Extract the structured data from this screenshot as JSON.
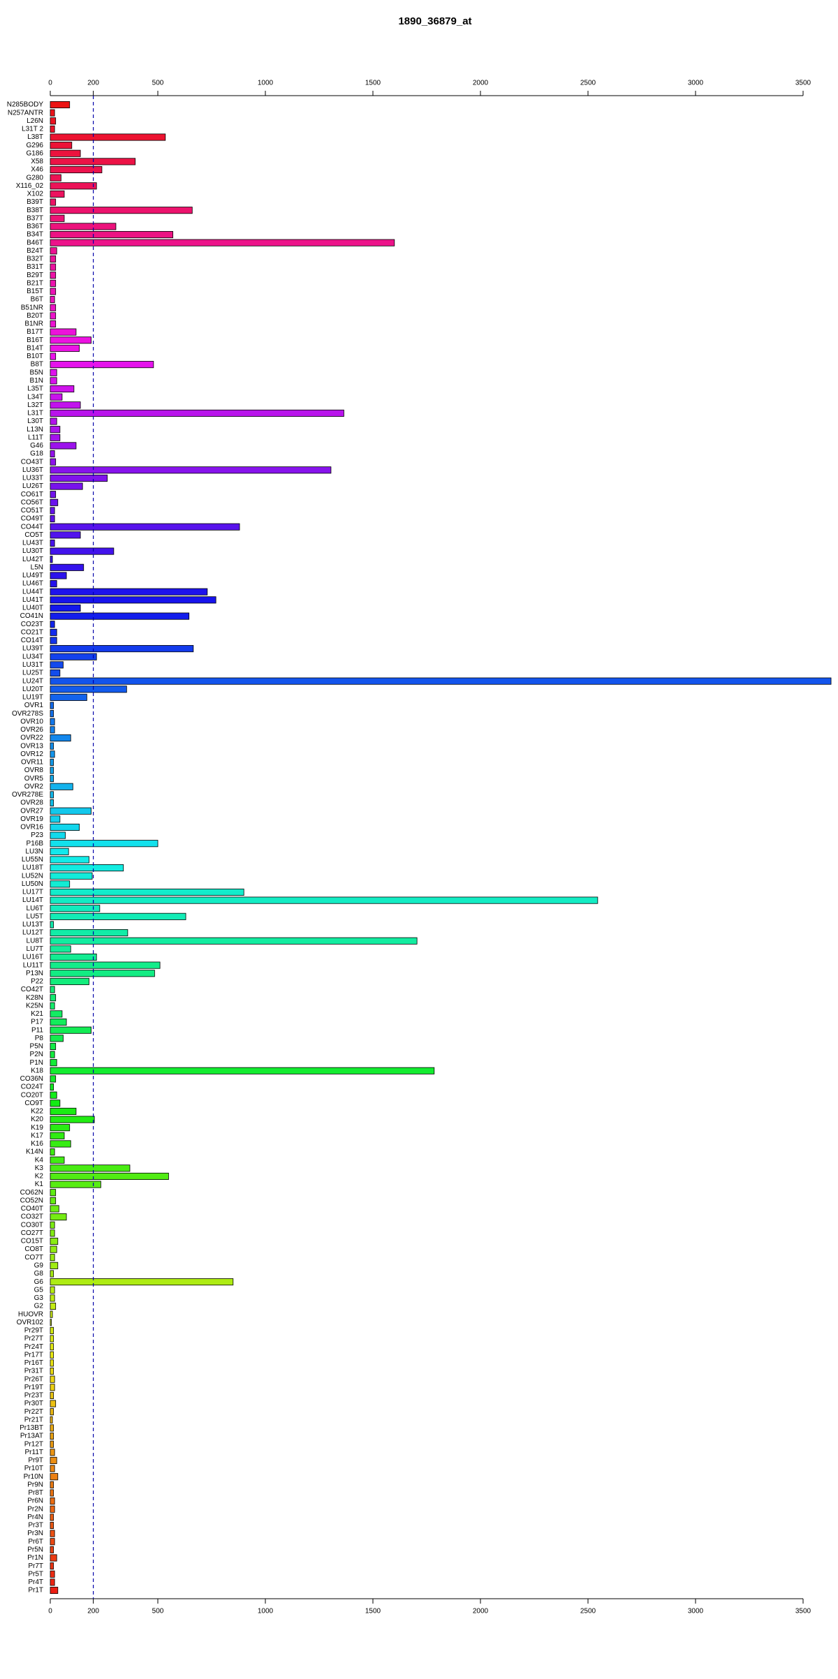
{
  "chart_data": {
    "type": "bar",
    "orientation": "horizontal",
    "title": "1890_36879_at",
    "categories": [
      "N285BODY",
      "N257ANTR",
      "L26N",
      "L31T 2",
      "L38T",
      "G296",
      "G186",
      "X58",
      "X46",
      "G280",
      "X116_02",
      "X102",
      "B39T",
      "B38T",
      "B37T",
      "B36T",
      "B34T",
      "B46T",
      "B24T",
      "B32T",
      "B31T",
      "B29T",
      "B21T",
      "B15T",
      "B6T",
      "B51NR",
      "B20T",
      "B1NR",
      "B17T",
      "B16T",
      "B14T",
      "B10T",
      "B8T",
      "B5N",
      "B1N",
      "L35T",
      "L34T",
      "L32T",
      "L31T",
      "L30T",
      "L13N",
      "L11T",
      "G46",
      "G18",
      "CO43T",
      "LU36T",
      "LU33T",
      "LU26T",
      "CO61T",
      "CO56T",
      "CO51T",
      "CO49T",
      "CO44T",
      "CO5T",
      "LU43T",
      "LU30T",
      "LU42T",
      "L5N",
      "LU49T",
      "LU46T",
      "LU44T",
      "LU41T",
      "LU40T",
      "CO41N",
      "CO23T",
      "CO21T",
      "CO14T",
      "LU39T",
      "LU34T",
      "LU31T",
      "LU25T",
      "LU24T",
      "LU20T",
      "LU19T",
      "OVR1",
      "OVR278S",
      "OVR10",
      "OVR26",
      "OVR22",
      "OVR13",
      "OVR12",
      "OVR11",
      "OVR8",
      "OVR5",
      "OVR2",
      "OVR278E",
      "OVR28",
      "OVR27",
      "OVR19",
      "OVR16",
      "P23",
      "P16B",
      "LU3N",
      "LU55N",
      "LU18T",
      "LU52N",
      "LU50N",
      "LU17T",
      "LU14T",
      "LU6T",
      "LU5T",
      "LU13T",
      "LU12T",
      "LU8T",
      "LU7T",
      "LU16T",
      "LU11T",
      "P13N",
      "P22",
      "CO42T",
      "K28N",
      "K25N",
      "K21",
      "P17",
      "P11",
      "P8",
      "P5N",
      "P2N",
      "P1N",
      "K18",
      "CO36N",
      "CO24T",
      "CO20T",
      "CO9T",
      "K22",
      "K20",
      "K19",
      "K17",
      "K16",
      "K14N",
      "K4",
      "K3",
      "K2",
      "K1",
      "CO62N",
      "CO52N",
      "CO40T",
      "CO32T",
      "CO30T",
      "CO27T",
      "CO15T",
      "CO8T",
      "CO7T",
      "G9",
      "G8",
      "G6",
      "G5",
      "G3",
      "G2",
      "HUOVR",
      "OVR102",
      "Pr29T",
      "Pr27T",
      "Pr24T",
      "Pr17T",
      "Pr16T",
      "Pr31T",
      "Pr26T",
      "Pr19T",
      "Pr23T",
      "Pr30T",
      "Pr22T",
      "Pr21T",
      "Pr13BT",
      "Pr13AT",
      "Pr12T",
      "Pr11T",
      "Pr9T",
      "Pr10T",
      "Pr10N",
      "Pr9N",
      "Pr8T",
      "Pr6N",
      "Pr2N",
      "Pr4N",
      "Pr3T",
      "Pr3N",
      "Pr6T",
      "Pr5N",
      "Pr1N",
      "Pr7T",
      "Pr5T",
      "Pr4T",
      "Pr1T"
    ],
    "values": [
      90,
      20,
      25,
      20,
      535,
      100,
      140,
      395,
      240,
      50,
      215,
      65,
      25,
      660,
      65,
      305,
      570,
      1600,
      30,
      25,
      25,
      25,
      25,
      25,
      20,
      25,
      25,
      25,
      120,
      190,
      135,
      25,
      480,
      30,
      30,
      110,
      55,
      140,
      1365,
      30,
      45,
      45,
      120,
      20,
      25,
      1305,
      265,
      150,
      25,
      35,
      20,
      20,
      880,
      140,
      20,
      295,
      10,
      155,
      75,
      30,
      730,
      770,
      140,
      645,
      20,
      30,
      30,
      665,
      215,
      60,
      45,
      3630,
      355,
      170,
      15,
      15,
      20,
      20,
      95,
      15,
      20,
      15,
      15,
      15,
      105,
      15,
      15,
      190,
      45,
      135,
      70,
      500,
      85,
      180,
      340,
      195,
      90,
      900,
      2545,
      230,
      630,
      15,
      360,
      1705,
      95,
      215,
      510,
      485,
      180,
      20,
      25,
      20,
      55,
      75,
      190,
      60,
      25,
      20,
      30,
      1785,
      25,
      15,
      30,
      45,
      120,
      205,
      90,
      65,
      95,
      20,
      65,
      370,
      550,
      235,
      25,
      25,
      40,
      75,
      20,
      20,
      35,
      30,
      20,
      35,
      15,
      850,
      20,
      20,
      25,
      10,
      5,
      15,
      15,
      15,
      15,
      15,
      15,
      20,
      20,
      15,
      25,
      15,
      10,
      15,
      15,
      15,
      20,
      30,
      20,
      35,
      15,
      15,
      20,
      20,
      15,
      15,
      20,
      20,
      15,
      30,
      15,
      20,
      20,
      35
    ],
    "colors": [
      "hsl(360,85%,50%)",
      "hsl(358,85%,50%)",
      "hsl(356,85%,50%)",
      "hsl(354,85%,50%)",
      "hsl(352,85%,50%)",
      "hsl(350,85%,50%)",
      "hsl(348,85%,50%)",
      "hsl(346,85%,50%)",
      "hsl(344,85%,50%)",
      "hsl(342,85%,50%)",
      "hsl(341,85%,50%)",
      "hsl(339,85%,50%)",
      "hsl(337,85%,50%)",
      "hsl(335,85%,50%)",
      "hsl(333,85%,50%)",
      "hsl(331,85%,50%)",
      "hsl(329,85%,50%)",
      "hsl(327,85%,50%)",
      "hsl(325,85%,50%)",
      "hsl(323,85%,50%)",
      "hsl(321,85%,50%)",
      "hsl(319,85%,50%)",
      "hsl(317,85%,50%)",
      "hsl(315,85%,50%)",
      "hsl(313,85%,50%)",
      "hsl(311,85%,50%)",
      "hsl(309,85%,50%)",
      "hsl(307,85%,50%)",
      "hsl(305,85%,50%)",
      "hsl(303,85%,50%)",
      "hsl(302,85%,50%)",
      "hsl(300,85%,50%)",
      "hsl(298,85%,50%)",
      "hsl(296,85%,50%)",
      "hsl(294,85%,50%)",
      "hsl(292,85%,50%)",
      "hsl(290,85%,50%)",
      "hsl(288,85%,50%)",
      "hsl(286,85%,50%)",
      "hsl(284,85%,50%)",
      "hsl(282,85%,50%)",
      "hsl(280,85%,50%)",
      "hsl(278,85%,50%)",
      "hsl(276,85%,50%)",
      "hsl(274,85%,50%)",
      "hsl(272,85%,50%)",
      "hsl(270,85%,50%)",
      "hsl(268,85%,50%)",
      "hsl(266,85%,50%)",
      "hsl(264,85%,50%)",
      "hsl(263,85%,50%)",
      "hsl(261,85%,50%)",
      "hsl(259,85%,50%)",
      "hsl(257,85%,50%)",
      "hsl(255,85%,50%)",
      "hsl(253,85%,50%)",
      "hsl(251,85%,50%)",
      "hsl(249,85%,50%)",
      "hsl(247,85%,50%)",
      "hsl(245,85%,50%)",
      "hsl(243,85%,50%)",
      "hsl(241,85%,50%)",
      "hsl(239,85%,50%)",
      "hsl(237,85%,50%)",
      "hsl(235,85%,50%)",
      "hsl(233,85%,50%)",
      "hsl(231,85%,50%)",
      "hsl(229,85%,50%)",
      "hsl(227,85%,50%)",
      "hsl(225,85%,50%)",
      "hsl(224,85%,50%)",
      "hsl(222,85%,50%)",
      "hsl(220,85%,50%)",
      "hsl(218,85%,50%)",
      "hsl(216,85%,50%)",
      "hsl(214,85%,50%)",
      "hsl(212,85%,50%)",
      "hsl(210,85%,50%)",
      "hsl(208,85%,50%)",
      "hsl(206,85%,50%)",
      "hsl(204,85%,50%)",
      "hsl(202,85%,50%)",
      "hsl(200,85%,50%)",
      "hsl(198,85%,50%)",
      "hsl(196,85%,50%)",
      "hsl(194,85%,50%)",
      "hsl(192,85%,50%)",
      "hsl(190,85%,50%)",
      "hsl(188,85%,50%)",
      "hsl(186,85%,50%)",
      "hsl(185,85%,50%)",
      "hsl(183,85%,50%)",
      "hsl(181,85%,50%)",
      "hsl(179,85%,50%)",
      "hsl(177,85%,50%)",
      "hsl(175,85%,50%)",
      "hsl(173,85%,50%)",
      "hsl(171,85%,50%)",
      "hsl(169,85%,50%)",
      "hsl(167,85%,50%)",
      "hsl(165,85%,50%)",
      "hsl(163,85%,50%)",
      "hsl(161,85%,50%)",
      "hsl(159,85%,50%)",
      "hsl(157,85%,50%)",
      "hsl(155,85%,50%)",
      "hsl(153,85%,50%)",
      "hsl(151,85%,50%)",
      "hsl(149,85%,50%)",
      "hsl(147,85%,50%)",
      "hsl(146,85%,50%)",
      "hsl(144,85%,50%)",
      "hsl(142,85%,50%)",
      "hsl(140,85%,50%)",
      "hsl(138,85%,50%)",
      "hsl(136,85%,50%)",
      "hsl(134,85%,50%)",
      "hsl(132,85%,50%)",
      "hsl(130,85%,50%)",
      "hsl(128,85%,50%)",
      "hsl(126,85%,50%)",
      "hsl(124,85%,50%)",
      "hsl(122,85%,50%)",
      "hsl(120,85%,50%)",
      "hsl(118,85%,50%)",
      "hsl(116,85%,50%)",
      "hsl(114,85%,50%)",
      "hsl(112,85%,50%)",
      "hsl(110,85%,50%)",
      "hsl(108,85%,50%)",
      "hsl(107,85%,50%)",
      "hsl(105,85%,50%)",
      "hsl(103,85%,50%)",
      "hsl(101,85%,50%)",
      "hsl(99,85%,50%)",
      "hsl(97,85%,50%)",
      "hsl(95,85%,50%)",
      "hsl(93,85%,50%)",
      "hsl(91,85%,50%)",
      "hsl(89,85%,50%)",
      "hsl(87,85%,50%)",
      "hsl(85,85%,50%)",
      "hsl(83,85%,50%)",
      "hsl(81,85%,50%)",
      "hsl(79,85%,50%)",
      "hsl(77,85%,50%)",
      "hsl(75,85%,50%)",
      "hsl(73,85%,50%)",
      "hsl(71,85%,50%)",
      "hsl(69,85%,50%)",
      "hsl(68,85%,50%)",
      "hsl(66,85%,50%)",
      "hsl(64,85%,50%)",
      "hsl(62,85%,50%)",
      "hsl(60,85%,50%)",
      "hsl(58,85%,50%)",
      "hsl(56,85%,50%)",
      "hsl(54,85%,50%)",
      "hsl(52,85%,50%)",
      "hsl(50,85%,50%)",
      "hsl(48,85%,50%)",
      "hsl(46,85%,50%)",
      "hsl(44,85%,50%)",
      "hsl(42,85%,50%)",
      "hsl(40,85%,50%)",
      "hsl(38,85%,50%)",
      "hsl(36,85%,50%)",
      "hsl(34,85%,50%)",
      "hsl(32,85%,50%)",
      "hsl(30,85%,50%)",
      "hsl(29,85%,50%)",
      "hsl(27,85%,50%)",
      "hsl(25,85%,50%)",
      "hsl(23,85%,50%)",
      "hsl(21,85%,50%)",
      "hsl(19,85%,50%)",
      "hsl(17,85%,50%)",
      "hsl(15,85%,50%)",
      "hsl(13,85%,50%)",
      "hsl(11,85%,50%)",
      "hsl(9,85%,50%)",
      "hsl(7,85%,50%)",
      "hsl(5,85%,50%)",
      "hsl(3,85%,50%)"
    ],
    "xlim": [
      0,
      3500
    ],
    "xticks": [
      0,
      200,
      500,
      1000,
      1500,
      2000,
      2500,
      3000,
      3500
    ],
    "reference_line": 200,
    "reference_line_color": "#0000aa"
  }
}
